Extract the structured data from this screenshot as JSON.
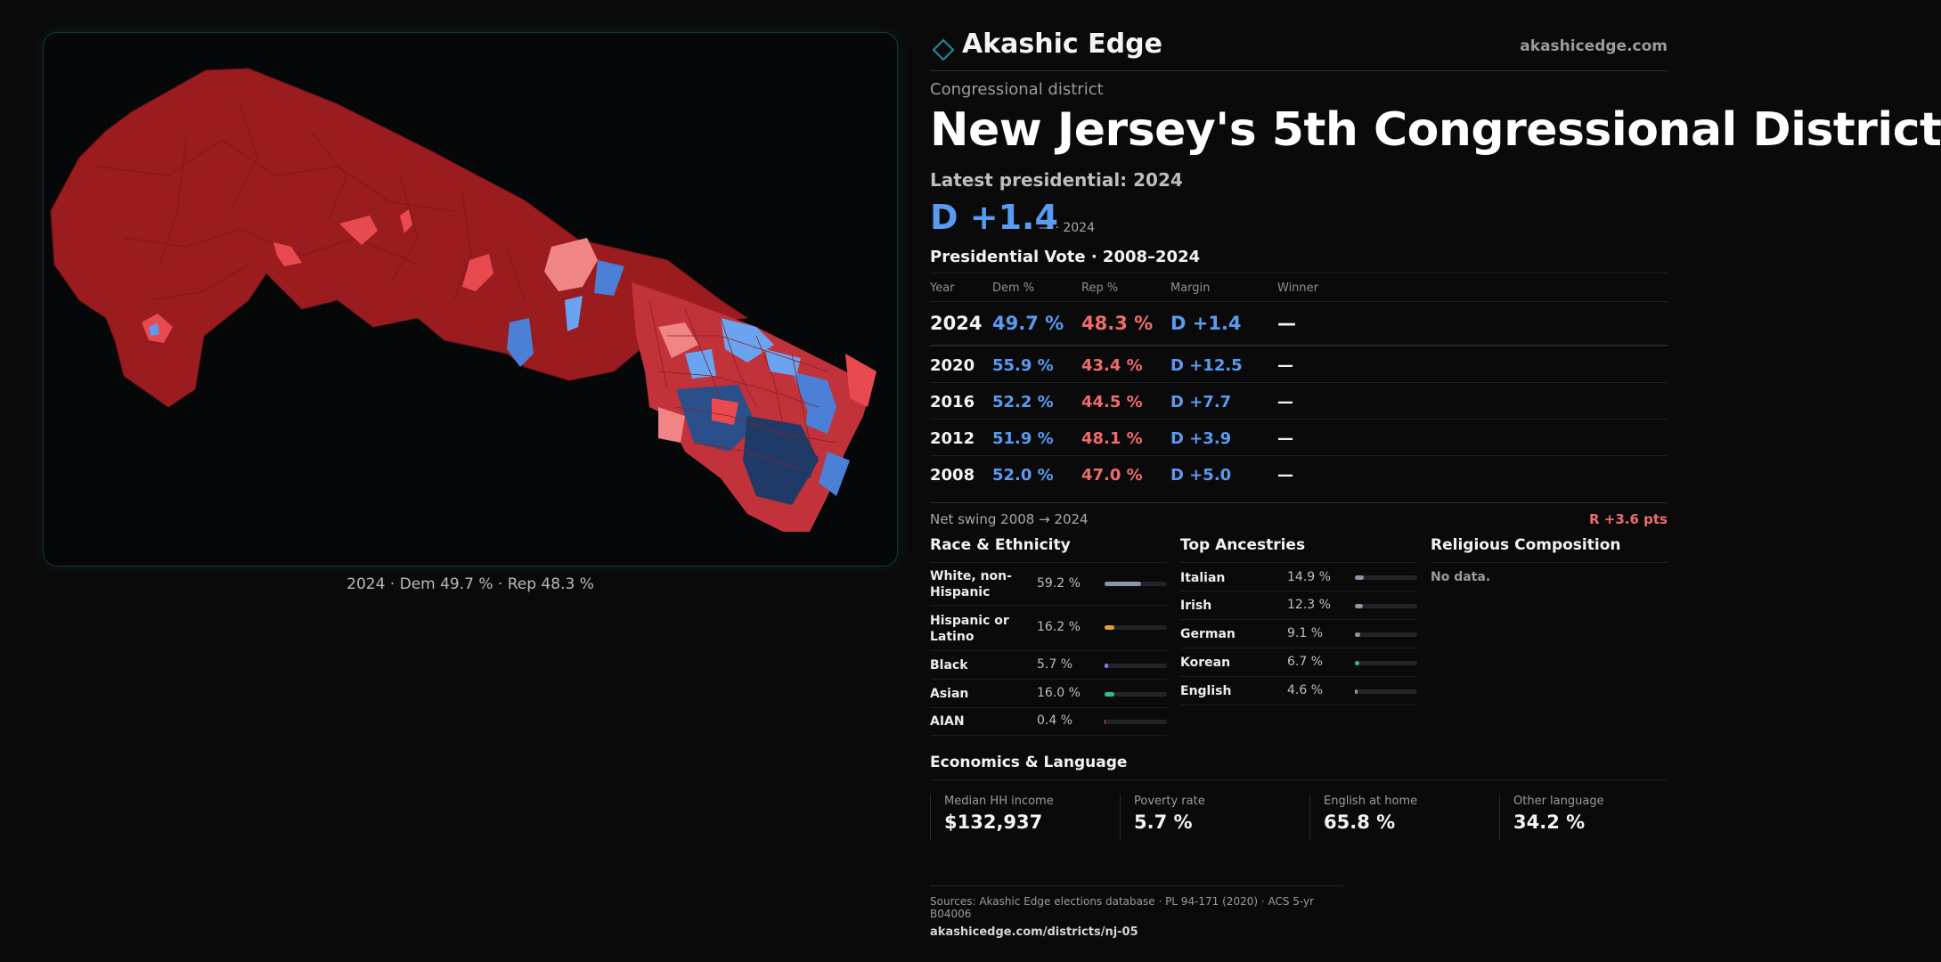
{
  "colors": {
    "dem": "#5a9bf2",
    "rep": "#ef6c6c",
    "accent": "#1f6f78",
    "background": "#0a0a0b"
  },
  "map": {
    "caption": "2024 · Dem 49.7 % · Rep 48.3 %"
  },
  "header": {
    "brand_name": "Akashic Edge",
    "brand_url": "akashicedge.com",
    "logo_icon": "diamond-icon"
  },
  "district": {
    "kicker": "Congressional district",
    "title": "New Jersey's 5th Congressional District",
    "latest_label": "Latest presidential: 2024",
    "margin": "D +1.4",
    "margin_sub": "— · 2024"
  },
  "vote": {
    "title": "Presidential Vote · 2008–2024",
    "headers": {
      "year": "Year",
      "dem": "Dem %",
      "rep": "Rep %",
      "margin": "Margin",
      "winner": "Winner"
    },
    "rows": [
      {
        "year": "2024",
        "dem": "49.7 %",
        "rep": "48.3 %",
        "margin": "D +1.4",
        "winner": "—"
      },
      {
        "year": "2020",
        "dem": "55.9 %",
        "rep": "43.4 %",
        "margin": "D +12.5",
        "winner": "—"
      },
      {
        "year": "2016",
        "dem": "52.2 %",
        "rep": "44.5 %",
        "margin": "D +7.7",
        "winner": "—"
      },
      {
        "year": "2012",
        "dem": "51.9 %",
        "rep": "48.1 %",
        "margin": "D +3.9",
        "winner": "—"
      },
      {
        "year": "2008",
        "dem": "52.0 %",
        "rep": "47.0 %",
        "margin": "D +5.0",
        "winner": "—"
      }
    ],
    "swing_label": "Net swing 2008 → 2024",
    "swing_value": "R +3.6 pts"
  },
  "race": {
    "title": "Race & Ethnicity",
    "rows": [
      {
        "label": "White, non-Hispanic",
        "value": "59.2 %",
        "share": 0.592,
        "color": "#8d96a8"
      },
      {
        "label": "Hispanic or Latino",
        "value": "16.2 %",
        "share": 0.162,
        "color": "#e0a030"
      },
      {
        "label": "Black",
        "value": "5.7 %",
        "share": 0.057,
        "color": "#8a7ce8"
      },
      {
        "label": "Asian",
        "value": "16.0 %",
        "share": 0.16,
        "color": "#2fbf8f"
      },
      {
        "label": "AIAN",
        "value": "0.4 %",
        "share": 0.004,
        "color": "#e06a3a"
      }
    ]
  },
  "ancestry": {
    "title": "Top Ancestries",
    "rows": [
      {
        "label": "Italian",
        "value": "14.9 %",
        "share": 0.149,
        "color": "#8d96a8"
      },
      {
        "label": "Irish",
        "value": "12.3 %",
        "share": 0.123,
        "color": "#8d96a8"
      },
      {
        "label": "German",
        "value": "9.1 %",
        "share": 0.091,
        "color": "#8d96a8"
      },
      {
        "label": "Korean",
        "value": "6.7 %",
        "share": 0.067,
        "color": "#2fbf8f"
      },
      {
        "label": "English",
        "value": "4.6 %",
        "share": 0.046,
        "color": "#8d96a8"
      }
    ]
  },
  "religion": {
    "title": "Religious Composition",
    "empty": "No data."
  },
  "economics": {
    "title": "Economics & Language",
    "cards": [
      {
        "label": "Median HH income",
        "value": "$132,937"
      },
      {
        "label": "Poverty rate",
        "value": "5.7 %"
      },
      {
        "label": "English at home",
        "value": "65.8 %"
      },
      {
        "label": "Other language",
        "value": "34.2 %"
      }
    ]
  },
  "footer": {
    "sources": "Sources: Akashic Edge elections database · PL 94-171 (2020) · ACS 5-yr B04006",
    "url": "akashicedge.com/districts/nj-05"
  }
}
